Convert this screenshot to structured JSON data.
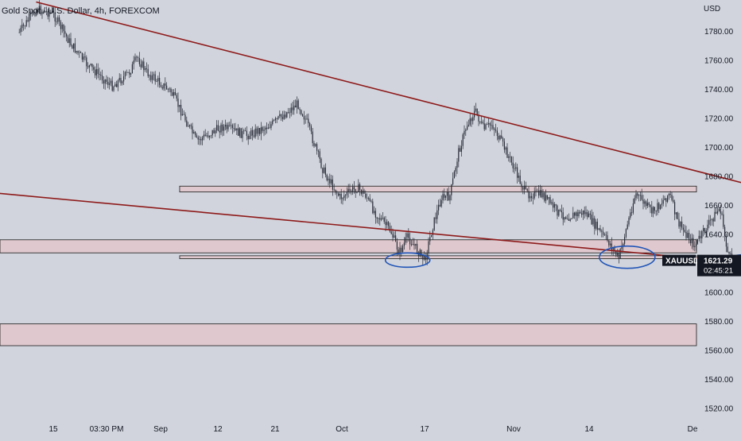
{
  "header": {
    "title": "Gold Spot / U.S. Dollar, 4h, FOREXCOM"
  },
  "price_axis": {
    "currency": "USD"
  },
  "chart_data": {
    "type": "candlestick",
    "symbol": "XAUUSD",
    "title": "Gold Spot / U.S. Dollar, 4h, FOREXCOM",
    "interval": "4h",
    "ylabel": "USD",
    "ylim": [
      1514,
      1798
    ],
    "y_ticks": [
      1780,
      1760,
      1740,
      1720,
      1700,
      1680,
      1660,
      1640,
      1620,
      1600,
      1580,
      1560,
      1540,
      1520
    ],
    "x_ticks": [
      "15",
      "03:30 PM",
      "Sep",
      "12",
      "21",
      "Oct",
      "17",
      "Nov",
      "14",
      "De"
    ],
    "last_price": {
      "label": "XAUUSD",
      "value": "1621.29",
      "countdown": "02:45:21"
    },
    "price_path": [
      {
        "t": "Aug 11",
        "price": 1779
      },
      {
        "t": "Aug 13",
        "price": 1795
      },
      {
        "t": "Aug 15",
        "price": 1792
      },
      {
        "t": "Aug 17",
        "price": 1772
      },
      {
        "t": "Aug 19",
        "price": 1757
      },
      {
        "t": "Aug 22",
        "price": 1742
      },
      {
        "t": "Aug 24",
        "price": 1751
      },
      {
        "t": "Aug 25",
        "price": 1762
      },
      {
        "t": "Aug 26",
        "price": 1752
      },
      {
        "t": "Aug 29",
        "price": 1738
      },
      {
        "t": "Sep 1",
        "price": 1704
      },
      {
        "t": "Sep 4",
        "price": 1714
      },
      {
        "t": "Sep 7",
        "price": 1708
      },
      {
        "t": "Sep 10",
        "price": 1716
      },
      {
        "t": "Sep 13",
        "price": 1730
      },
      {
        "t": "Sep 14",
        "price": 1718
      },
      {
        "t": "Sep 16",
        "price": 1684
      },
      {
        "t": "Sep 18",
        "price": 1665
      },
      {
        "t": "Sep 20",
        "price": 1672
      },
      {
        "t": "Sep 21",
        "price": 1667
      },
      {
        "t": "Sep 22",
        "price": 1656
      },
      {
        "t": "Sep 24",
        "price": 1642
      },
      {
        "t": "Sep 25",
        "price": 1627
      },
      {
        "t": "Sep 26",
        "price": 1638
      },
      {
        "t": "Sep 28",
        "price": 1622
      },
      {
        "t": "Sep 29",
        "price": 1646
      },
      {
        "t": "Sep 30",
        "price": 1665
      },
      {
        "t": "Oct 1",
        "price": 1666
      },
      {
        "t": "Oct 2",
        "price": 1696
      },
      {
        "t": "Oct 3",
        "price": 1715
      },
      {
        "t": "Oct 4",
        "price": 1725
      },
      {
        "t": "Oct 5",
        "price": 1712
      },
      {
        "t": "Oct 6",
        "price": 1716
      },
      {
        "t": "Oct 8",
        "price": 1693
      },
      {
        "t": "Oct 10",
        "price": 1668
      },
      {
        "t": "Oct 12",
        "price": 1667
      },
      {
        "t": "Oct 14",
        "price": 1654
      },
      {
        "t": "Oct 15",
        "price": 1652
      },
      {
        "t": "Oct 17",
        "price": 1655
      },
      {
        "t": "Oct 19",
        "price": 1640
      },
      {
        "t": "Oct 20",
        "price": 1633
      },
      {
        "t": "Oct 21",
        "price": 1623
      },
      {
        "t": "Oct 22",
        "price": 1646
      },
      {
        "t": "Oct 23",
        "price": 1668
      },
      {
        "t": "Oct 25",
        "price": 1655
      },
      {
        "t": "Oct 27",
        "price": 1668
      },
      {
        "t": "Oct 28",
        "price": 1648
      },
      {
        "t": "Oct 30",
        "price": 1632
      },
      {
        "t": "Nov 1",
        "price": 1650
      },
      {
        "t": "Nov 2",
        "price": 1658
      },
      {
        "t": "Nov 3",
        "price": 1624
      },
      {
        "t": "Nov 4",
        "price": 1621
      }
    ],
    "trendlines": [
      {
        "start": {
          "t": "Aug 13",
          "price": 1800
        },
        "end": {
          "t": "Dec 1",
          "price": 1636
        }
      },
      {
        "start": {
          "t": "Aug 5",
          "price": 1670
        },
        "end": {
          "t": "Nov 29",
          "price": 1607
        }
      }
    ],
    "zones": [
      {
        "from": {
          "t": "Aug 30",
          "price": 1673
        },
        "to": {
          "t": "Nov 20",
          "price": 1669
        }
      },
      {
        "from": {
          "t": "Aug 5",
          "price": 1636
        },
        "to": {
          "t": "Dec 1",
          "price": 1627
        }
      },
      {
        "from": {
          "t": "Aug 30",
          "price": 1625
        },
        "to": {
          "t": "Nov 30",
          "price": 1623
        }
      },
      {
        "from": {
          "t": "Aug 5",
          "price": 1578
        },
        "to": {
          "t": "Dec 1",
          "price": 1563
        }
      }
    ],
    "annotations": [
      {
        "type": "ellipse",
        "center": {
          "t": "Sep 26",
          "price": 1622
        }
      },
      {
        "type": "ellipse",
        "center": {
          "t": "Oct 22",
          "price": 1624
        }
      },
      {
        "type": "ellipse",
        "center": {
          "t": "Nov 5",
          "price": 1623
        }
      }
    ]
  },
  "colors": {
    "background": "#d1d4dc",
    "trendline": "#8e1a1a",
    "zone_fill": "#e0c8cc",
    "zone_stroke": "#1a1a1a",
    "annotation": "#2155b8",
    "candle": "#2a2e39",
    "axis_text": "#131722",
    "price_tag": "#131722",
    "price_tag_text": "#ffffff"
  }
}
